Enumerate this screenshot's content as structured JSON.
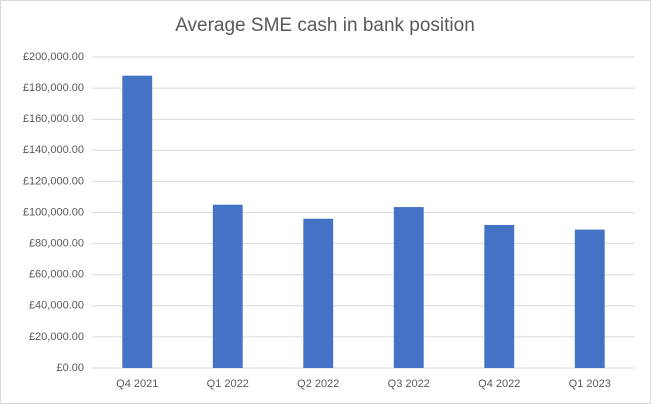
{
  "chart_data": {
    "type": "bar",
    "title": "Average SME cash in bank position",
    "categories": [
      "Q4 2021",
      "Q1 2022",
      "Q2 2022",
      "Q3 2022",
      "Q4 2022",
      "Q1 2023"
    ],
    "values": [
      188000,
      105000,
      96000,
      103500,
      92000,
      89000
    ],
    "color": "#4472c4",
    "ylim": [
      0,
      200000
    ],
    "yticks": [
      {
        "value": 0,
        "label": "£0.00"
      },
      {
        "value": 20000,
        "label": "£20,000.00"
      },
      {
        "value": 40000,
        "label": "£40,000.00"
      },
      {
        "value": 60000,
        "label": "£60,000.00"
      },
      {
        "value": 80000,
        "label": "£80,000.00"
      },
      {
        "value": 100000,
        "label": "£100,000.00"
      },
      {
        "value": 120000,
        "label": "£120,000.00"
      },
      {
        "value": 140000,
        "label": "£140,000.00"
      },
      {
        "value": 160000,
        "label": "£160,000.00"
      },
      {
        "value": 180000,
        "label": "£180,000.00"
      },
      {
        "value": 200000,
        "label": "£200,000.00"
      }
    ],
    "grid": true
  }
}
